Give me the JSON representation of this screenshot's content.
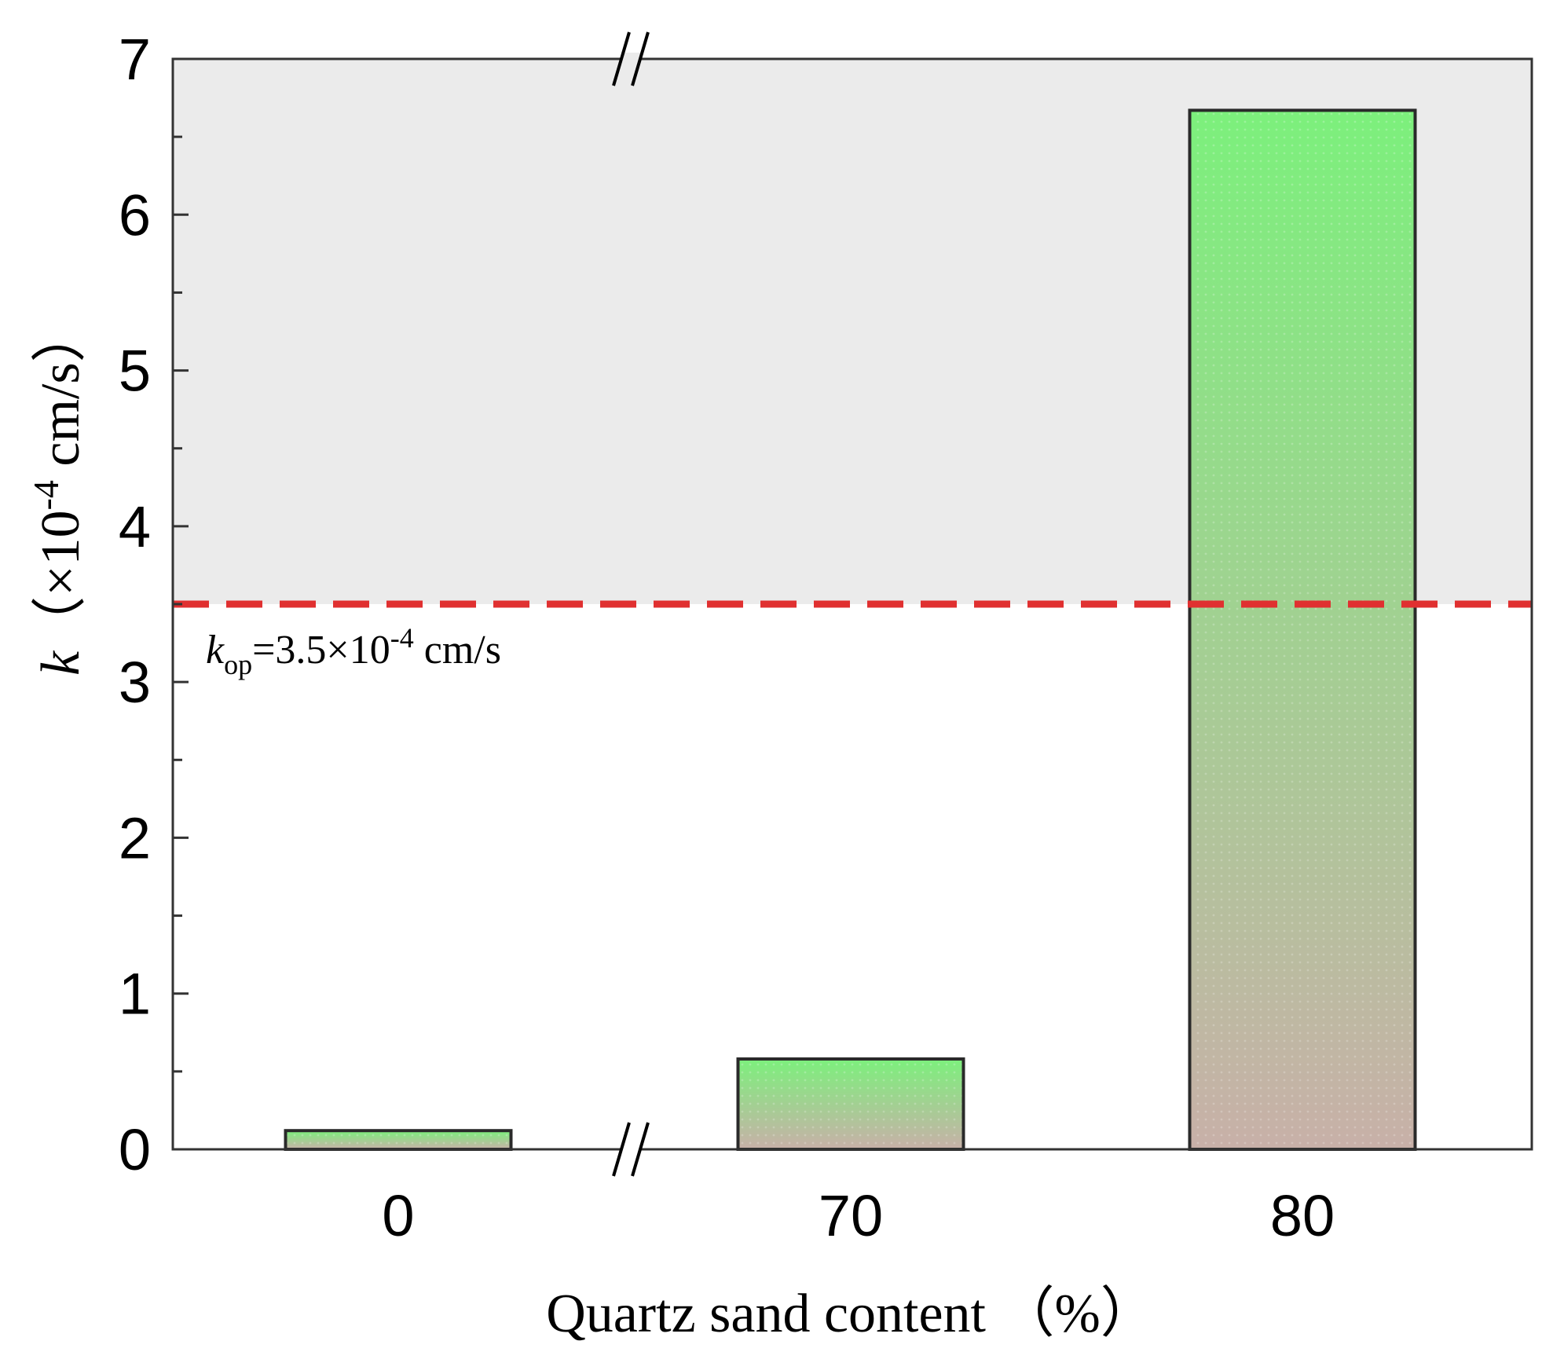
{
  "chart_data": {
    "type": "bar",
    "categories": [
      "0",
      "70",
      "80"
    ],
    "values": [
      0.12,
      0.58,
      6.67
    ],
    "ylim": [
      0,
      7
    ],
    "yticks": [
      0,
      1,
      2,
      3,
      4,
      5,
      6,
      7
    ],
    "ylabel": {
      "symbol": "k",
      "open": "（×10",
      "exp": "-4",
      "unit": " cm/s）"
    },
    "xlabel": "Quartz sand content （%）",
    "axis_break": true,
    "threshold": {
      "value": 3.5,
      "symbol": "k",
      "sub": "op",
      "text": "=3.5×10",
      "exp": "-4",
      "unit": " cm/s",
      "color": "#e03030"
    },
    "region_above_threshold_color": "#ebebeb",
    "bar_gradient": {
      "top": "#7cf07c",
      "bottom": "#c8b0a8"
    },
    "grid": false,
    "legend": "none"
  }
}
